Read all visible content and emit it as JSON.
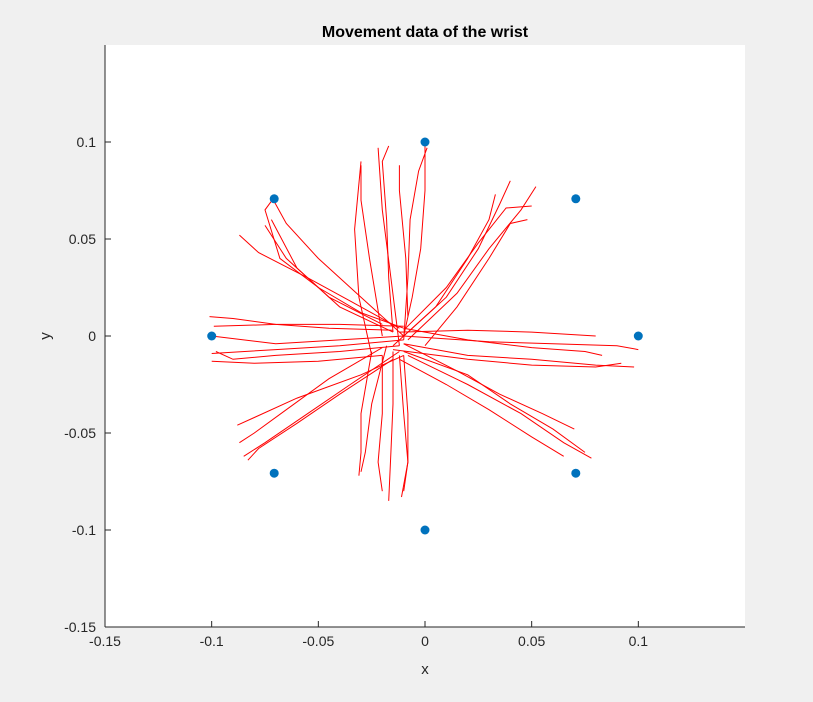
{
  "chart_data": {
    "type": "scatter",
    "title": "Movement data of the wrist",
    "xlabel": "x",
    "ylabel": "y",
    "xlim": [
      -0.15,
      0.15
    ],
    "ylim": [
      -0.15,
      0.15
    ],
    "grid": false,
    "xticks": [
      -0.15,
      -0.1,
      -0.05,
      0,
      0.05,
      0.1
    ],
    "yticks": [
      -0.15,
      -0.1,
      -0.05,
      0,
      0.05,
      0.1
    ],
    "xtick_labels": [
      "-0.15",
      "-0.1",
      "-0.05",
      "0",
      "0.05",
      "0.1"
    ],
    "ytick_labels": [
      "-0.15",
      "-0.1",
      "-0.05",
      "0",
      "0.05",
      "0.1"
    ],
    "colors": {
      "targets": "#0072bd",
      "trajectories": "#ff0000",
      "plot_bg": "#ffffff",
      "figure_bg": "#f0f0f0"
    },
    "targets": [
      {
        "x": 0,
        "y": 0.1
      },
      {
        "x": 0.0707,
        "y": 0.0707
      },
      {
        "x": 0.1,
        "y": 0
      },
      {
        "x": 0.0707,
        "y": -0.0707
      },
      {
        "x": 0,
        "y": -0.1
      },
      {
        "x": -0.0707,
        "y": -0.0707
      },
      {
        "x": -0.1,
        "y": 0
      },
      {
        "x": -0.0707,
        "y": 0.0707
      }
    ],
    "trajectories": [
      [
        [
          -0.01,
          0
        ],
        [
          -0.006,
          0.02
        ],
        [
          -0.002,
          0.045
        ],
        [
          0,
          0.075
        ],
        [
          0,
          0.1
        ]
      ],
      [
        [
          -0.01,
          -0.002
        ],
        [
          -0.008,
          0.03
        ],
        [
          -0.007,
          0.06
        ],
        [
          -0.003,
          0.085
        ],
        [
          0.001,
          0.097
        ]
      ],
      [
        [
          -0.015,
          0.002
        ],
        [
          -0.017,
          0.03
        ],
        [
          -0.018,
          0.06
        ],
        [
          -0.02,
          0.09
        ],
        [
          -0.017,
          0.098
        ]
      ],
      [
        [
          -0.012,
          -0.005
        ],
        [
          -0.016,
          0.03
        ],
        [
          -0.02,
          0.065
        ],
        [
          -0.022,
          0.097
        ]
      ],
      [
        [
          -0.02,
          0
        ],
        [
          -0.026,
          0.04
        ],
        [
          -0.03,
          0.07
        ],
        [
          -0.03,
          0.088
        ]
      ],
      [
        [
          -0.025,
          -0.01
        ],
        [
          -0.031,
          0.02
        ],
        [
          -0.033,
          0.055
        ],
        [
          -0.03,
          0.09
        ]
      ],
      [
        [
          -0.008,
          0.01
        ],
        [
          -0.009,
          0.04
        ],
        [
          -0.012,
          0.075
        ],
        [
          -0.012,
          0.088
        ]
      ],
      [
        [
          -0.01,
          0
        ],
        [
          0.01,
          0.02
        ],
        [
          0.025,
          0.045
        ],
        [
          0.035,
          0.068
        ],
        [
          0.04,
          0.08
        ]
      ],
      [
        [
          -0.008,
          -0.002
        ],
        [
          0.015,
          0.022
        ],
        [
          0.03,
          0.045
        ],
        [
          0.045,
          0.065
        ],
        [
          0.052,
          0.077
        ]
      ],
      [
        [
          -0.01,
          0.003
        ],
        [
          0.01,
          0.025
        ],
        [
          0.025,
          0.048
        ],
        [
          0.038,
          0.066
        ],
        [
          0.05,
          0.067
        ]
      ],
      [
        [
          0,
          -0.005
        ],
        [
          0.015,
          0.015
        ],
        [
          0.03,
          0.04
        ],
        [
          0.04,
          0.058
        ],
        [
          0.048,
          0.06
        ]
      ],
      [
        [
          -0.015,
          -0.005
        ],
        [
          0.005,
          0.015
        ],
        [
          0.02,
          0.04
        ],
        [
          0.03,
          0.06
        ],
        [
          0.033,
          0.073
        ]
      ],
      [
        [
          -0.01,
          0
        ],
        [
          0.03,
          -0.003
        ],
        [
          0.06,
          -0.004
        ],
        [
          0.09,
          -0.005
        ],
        [
          0.1,
          -0.007
        ]
      ],
      [
        [
          -0.012,
          0.002
        ],
        [
          0.02,
          0.003
        ],
        [
          0.05,
          0.002
        ],
        [
          0.08,
          0
        ]
      ],
      [
        [
          -0.01,
          -0.004
        ],
        [
          0.02,
          -0.01
        ],
        [
          0.05,
          -0.012
        ],
        [
          0.08,
          -0.015
        ],
        [
          0.098,
          -0.016
        ]
      ],
      [
        [
          -0.015,
          -0.007
        ],
        [
          0.02,
          -0.012
        ],
        [
          0.05,
          -0.015
        ],
        [
          0.08,
          -0.016
        ],
        [
          0.092,
          -0.014
        ]
      ],
      [
        [
          -0.01,
          0.004
        ],
        [
          0.02,
          -0.002
        ],
        [
          0.05,
          -0.006
        ],
        [
          0.075,
          -0.008
        ],
        [
          0.083,
          -0.01
        ]
      ],
      [
        [
          -0.008,
          -0.01
        ],
        [
          0.02,
          -0.025
        ],
        [
          0.045,
          -0.04
        ],
        [
          0.065,
          -0.055
        ],
        [
          0.078,
          -0.063
        ]
      ],
      [
        [
          -0.01,
          -0.008
        ],
        [
          0.02,
          -0.02
        ],
        [
          0.04,
          -0.035
        ],
        [
          0.06,
          -0.048
        ],
        [
          0.075,
          -0.06
        ]
      ],
      [
        [
          -0.012,
          -0.012
        ],
        [
          0.01,
          -0.025
        ],
        [
          0.03,
          -0.038
        ],
        [
          0.05,
          -0.052
        ],
        [
          0.065,
          -0.062
        ]
      ],
      [
        [
          -0.01,
          -0.004
        ],
        [
          0.015,
          -0.018
        ],
        [
          0.035,
          -0.03
        ],
        [
          0.055,
          -0.04
        ],
        [
          0.07,
          -0.048
        ]
      ],
      [
        [
          -0.01,
          -0.01
        ],
        [
          -0.008,
          -0.04
        ],
        [
          -0.008,
          -0.065
        ],
        [
          -0.011,
          -0.083
        ]
      ],
      [
        [
          -0.015,
          -0.008
        ],
        [
          -0.015,
          -0.035
        ],
        [
          -0.016,
          -0.06
        ],
        [
          -0.017,
          -0.085
        ]
      ],
      [
        [
          -0.012,
          -0.01
        ],
        [
          -0.01,
          -0.04
        ],
        [
          -0.008,
          -0.065
        ],
        [
          -0.01,
          -0.08
        ]
      ],
      [
        [
          -0.02,
          -0.01
        ],
        [
          -0.02,
          -0.04
        ],
        [
          -0.022,
          -0.065
        ],
        [
          -0.02,
          -0.08
        ]
      ],
      [
        [
          -0.018,
          -0.005
        ],
        [
          -0.025,
          -0.035
        ],
        [
          -0.028,
          -0.06
        ],
        [
          -0.03,
          -0.07
        ]
      ],
      [
        [
          -0.025,
          -0.008
        ],
        [
          -0.03,
          -0.04
        ],
        [
          -0.03,
          -0.06
        ],
        [
          -0.031,
          -0.072
        ]
      ],
      [
        [
          -0.01,
          0
        ],
        [
          -0.04,
          -0.002
        ],
        [
          -0.07,
          -0.004
        ],
        [
          -0.1,
          0
        ]
      ],
      [
        [
          -0.012,
          -0.005
        ],
        [
          -0.04,
          -0.008
        ],
        [
          -0.07,
          -0.01
        ],
        [
          -0.09,
          -0.012
        ],
        [
          -0.098,
          -0.008
        ]
      ],
      [
        [
          -0.015,
          0.003
        ],
        [
          -0.045,
          0.004
        ],
        [
          -0.07,
          0.006
        ],
        [
          -0.09,
          0.009
        ],
        [
          -0.101,
          0.01
        ]
      ],
      [
        [
          -0.01,
          0.005
        ],
        [
          -0.04,
          0.006
        ],
        [
          -0.07,
          0.006
        ],
        [
          -0.099,
          0.005
        ]
      ],
      [
        [
          -0.02,
          -0.01
        ],
        [
          -0.05,
          -0.013
        ],
        [
          -0.08,
          -0.014
        ],
        [
          -0.1,
          -0.013
        ]
      ],
      [
        [
          -0.01,
          -0.002
        ],
        [
          -0.04,
          -0.005
        ],
        [
          -0.07,
          -0.007
        ],
        [
          -0.1,
          -0.009
        ]
      ],
      [
        [
          -0.01,
          -0.01
        ],
        [
          -0.03,
          -0.02
        ],
        [
          -0.06,
          -0.032
        ],
        [
          -0.08,
          -0.042
        ],
        [
          -0.088,
          -0.046
        ]
      ],
      [
        [
          -0.012,
          -0.008
        ],
        [
          -0.035,
          -0.025
        ],
        [
          -0.055,
          -0.04
        ],
        [
          -0.075,
          -0.055
        ],
        [
          -0.085,
          -0.062
        ]
      ],
      [
        [
          -0.015,
          -0.012
        ],
        [
          -0.04,
          -0.03
        ],
        [
          -0.06,
          -0.045
        ],
        [
          -0.078,
          -0.058
        ],
        [
          -0.083,
          -0.064
        ]
      ],
      [
        [
          -0.02,
          -0.006
        ],
        [
          -0.045,
          -0.022
        ],
        [
          -0.065,
          -0.038
        ],
        [
          -0.08,
          -0.05
        ],
        [
          -0.087,
          -0.055
        ]
      ],
      [
        [
          -0.01,
          0
        ],
        [
          -0.03,
          0.02
        ],
        [
          -0.05,
          0.04
        ],
        [
          -0.065,
          0.058
        ],
        [
          -0.071,
          0.07
        ]
      ],
      [
        [
          -0.012,
          0.004
        ],
        [
          -0.035,
          0.018
        ],
        [
          -0.055,
          0.03
        ],
        [
          -0.078,
          0.043
        ],
        [
          -0.087,
          0.052
        ]
      ],
      [
        [
          -0.015,
          0.002
        ],
        [
          -0.04,
          0.015
        ],
        [
          -0.06,
          0.035
        ],
        [
          -0.072,
          0.06
        ]
      ],
      [
        [
          -0.02,
          0.006
        ],
        [
          -0.045,
          0.02
        ],
        [
          -0.065,
          0.04
        ],
        [
          -0.075,
          0.057
        ]
      ],
      [
        [
          -0.01,
          0.004
        ],
        [
          -0.03,
          0.012
        ],
        [
          -0.05,
          0.025
        ],
        [
          -0.068,
          0.04
        ],
        [
          -0.075,
          0.065
        ],
        [
          -0.071,
          0.071
        ]
      ]
    ]
  }
}
